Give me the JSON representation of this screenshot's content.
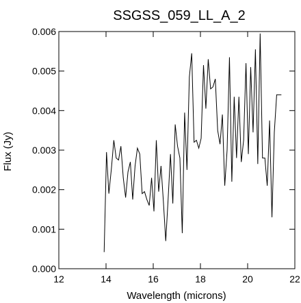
{
  "chart_data": {
    "type": "line",
    "title": "SSGSS_059_LL_A_2",
    "xlabel": "Wavelength (microns)",
    "ylabel": "Flux (Jy)",
    "xlim": [
      12,
      22
    ],
    "ylim": [
      0.0,
      0.006
    ],
    "x_ticks": [
      12,
      14,
      16,
      18,
      20,
      22
    ],
    "x_tick_labels": [
      "12",
      "14",
      "16",
      "18",
      "20",
      "22"
    ],
    "y_ticks": [
      0.0,
      0.001,
      0.002,
      0.003,
      0.004,
      0.005,
      0.006
    ],
    "y_tick_labels": [
      "0.000",
      "0.001",
      "0.002",
      "0.003",
      "0.004",
      "0.005",
      "0.006"
    ],
    "grid": false,
    "line_color": "#000000",
    "series": [
      {
        "x": [
          13.92,
          14.02,
          14.12,
          14.23,
          14.33,
          14.43,
          14.53,
          14.63,
          14.73,
          14.83,
          14.93,
          15.03,
          15.13,
          15.23,
          15.33,
          15.43,
          15.53,
          15.63,
          15.73,
          15.83,
          15.93,
          16.03,
          16.13,
          16.23,
          16.33,
          16.43,
          16.53,
          16.63,
          16.73,
          16.83,
          16.93,
          17.03,
          17.13,
          17.23,
          17.33,
          17.43,
          17.53,
          17.63,
          17.73,
          17.83,
          17.93,
          18.03,
          18.13,
          18.23,
          18.33,
          18.43,
          18.53,
          18.63,
          18.73,
          18.83,
          18.93,
          19.03,
          19.13,
          19.23,
          19.33,
          19.43,
          19.53,
          19.63,
          19.73,
          19.83,
          19.93,
          20.03,
          20.13,
          20.23,
          20.33,
          20.43,
          20.53,
          20.63,
          20.73,
          20.83,
          20.93,
          21.03,
          21.13,
          21.23,
          21.33,
          21.43
        ],
        "y": [
          0.00042,
          0.00295,
          0.0019,
          0.00255,
          0.00325,
          0.0028,
          0.00275,
          0.0031,
          0.0023,
          0.0018,
          0.00245,
          0.0027,
          0.00175,
          0.0026,
          0.00305,
          0.0029,
          0.0019,
          0.00195,
          0.00175,
          0.0016,
          0.0023,
          0.00145,
          0.00325,
          0.00195,
          0.0026,
          0.0017,
          0.0007,
          0.00175,
          0.0029,
          0.00165,
          0.00365,
          0.0031,
          0.0028,
          0.0009,
          0.00395,
          0.0025,
          0.00485,
          0.00545,
          0.0032,
          0.00325,
          0.00305,
          0.0033,
          0.00515,
          0.00405,
          0.0053,
          0.00455,
          0.0046,
          0.0048,
          0.0035,
          0.00315,
          0.0039,
          0.0021,
          0.003,
          0.00535,
          0.0022,
          0.00435,
          0.0028,
          0.00435,
          0.0027,
          0.00325,
          0.0052,
          0.0029,
          0.0051,
          0.00345,
          0.00555,
          0.00265,
          0.00595,
          0.0028,
          0.0028,
          0.0021,
          0.00375,
          0.0013,
          0.00345,
          0.0044,
          0.0044,
          0.0044
        ]
      }
    ]
  }
}
